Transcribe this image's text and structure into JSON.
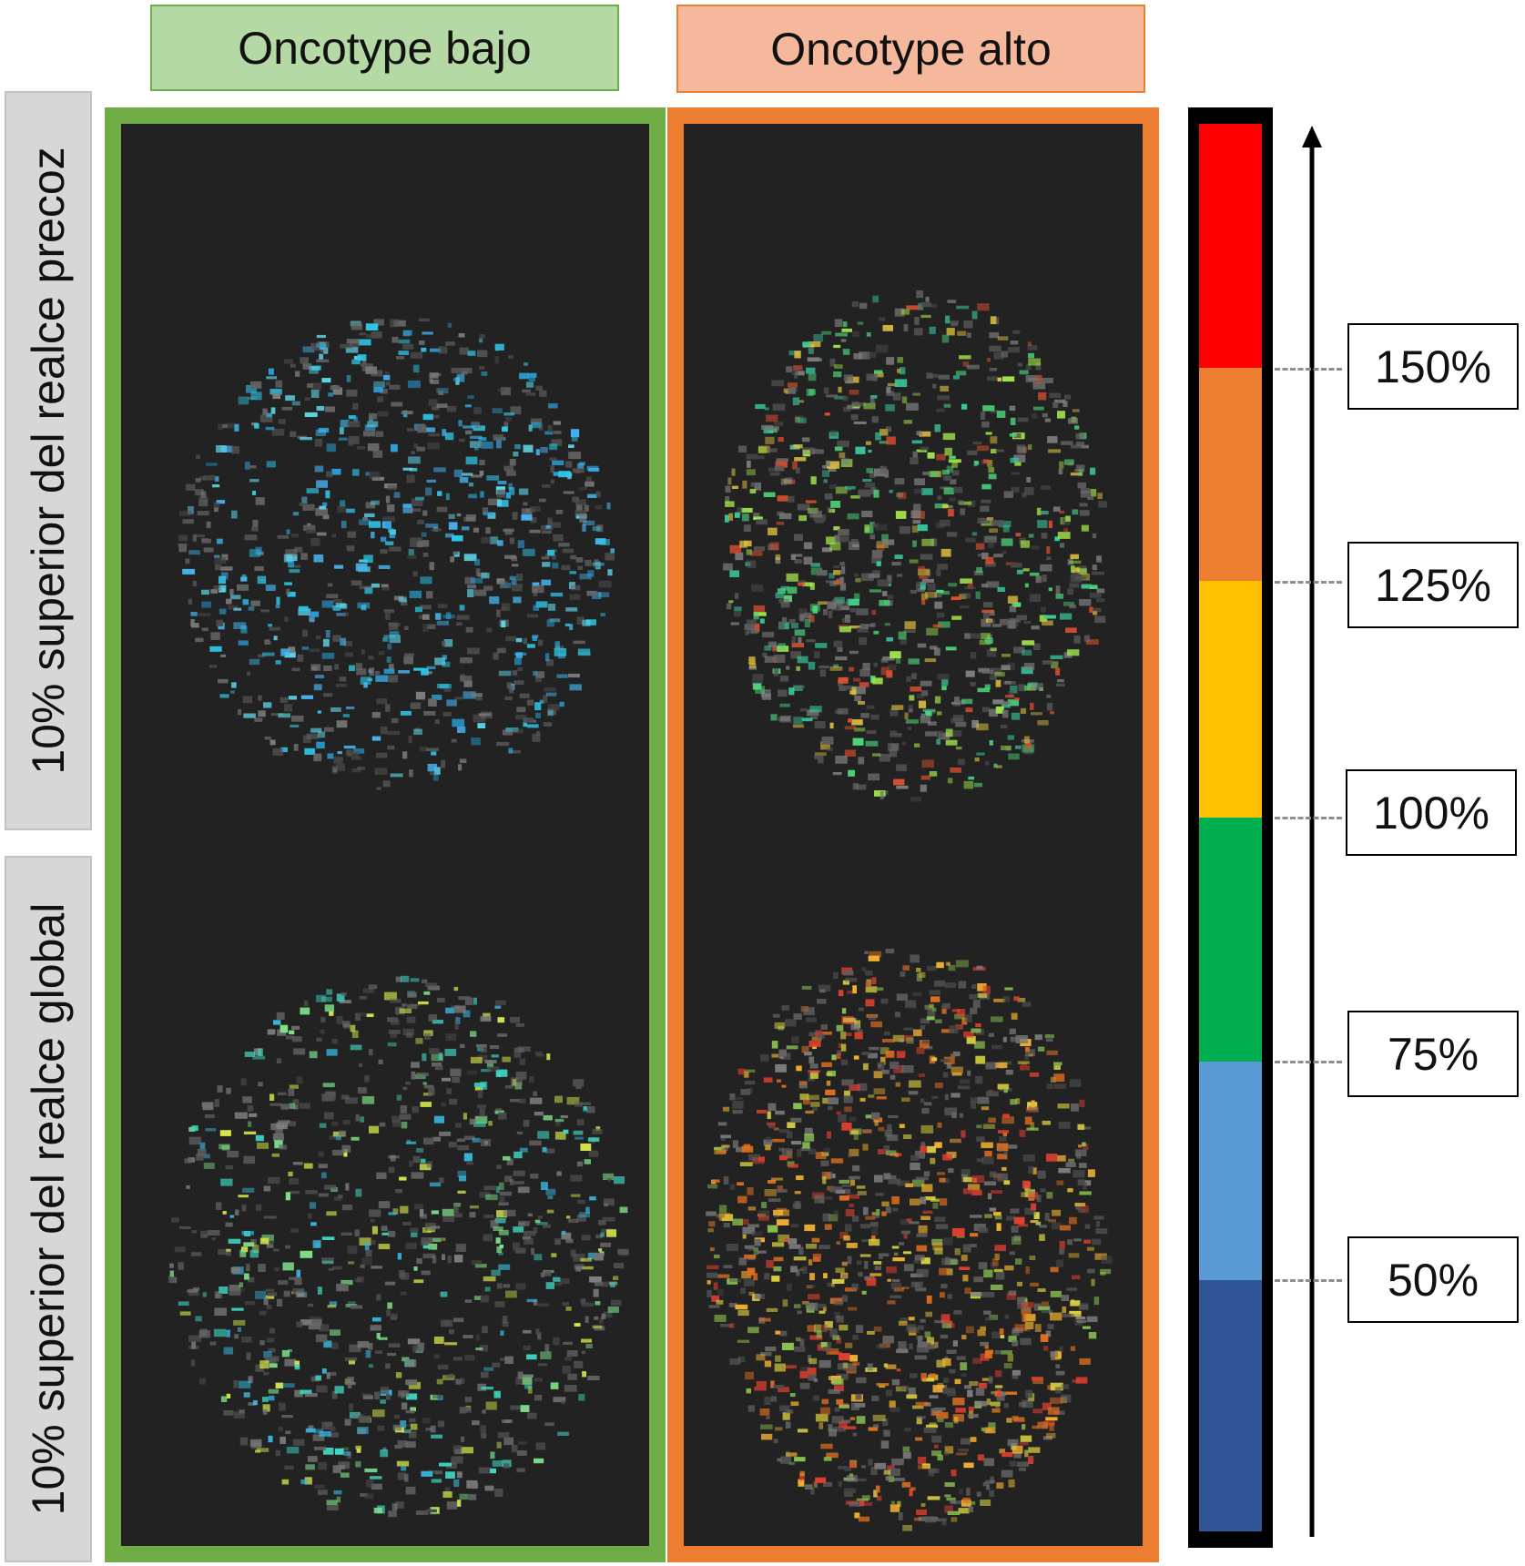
{
  "columns": [
    {
      "label": "Oncotype bajo",
      "color": "#70ad47"
    },
    {
      "label": "Oncotype alto",
      "color": "#ed7d31"
    }
  ],
  "rows": [
    {
      "label": "10% superior del realce precoz"
    },
    {
      "label": "10% superior del realce global"
    }
  ],
  "scale": {
    "segments": [
      {
        "color": "#ff0000"
      },
      {
        "color": "#ed7d31"
      },
      {
        "color": "#ffc000"
      },
      {
        "color": "#00b050"
      },
      {
        "color": "#5b9bd5"
      },
      {
        "color": "#2f5597"
      }
    ],
    "levels": [
      {
        "label": "150%"
      },
      {
        "label": "125%"
      },
      {
        "label": "100%"
      },
      {
        "label": "75%"
      },
      {
        "label": "50%"
      }
    ]
  }
}
